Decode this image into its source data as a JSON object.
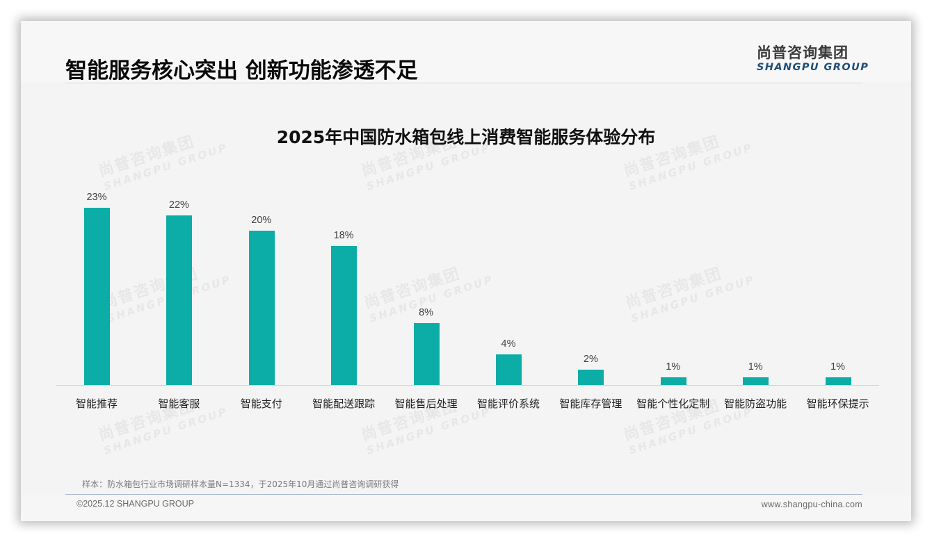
{
  "header": {
    "title": "智能服务核心突出 创新功能渗透不足",
    "logo_cn": "尚普咨询集团",
    "logo_en": "SHANGPU GROUP"
  },
  "watermark": {
    "cn": "尚普咨询集团",
    "en": "SHANGPU GROUP"
  },
  "colors": {
    "bar": "#0bada6",
    "logo_en": "#1f4e79",
    "title": "#0a0a0a"
  },
  "chart_data": {
    "type": "bar",
    "title": "2025年中国防水箱包线上消费智能服务体验分布",
    "xlabel": "",
    "ylabel": "",
    "ylim": [
      0,
      25
    ],
    "grid": false,
    "legend": null,
    "categories": [
      "智能推荐",
      "智能客服",
      "智能支付",
      "智能配送跟踪",
      "智能售后处理",
      "智能评价系统",
      "智能库存管理",
      "智能个性化定制",
      "智能防盗功能",
      "智能环保提示"
    ],
    "values": [
      23,
      22,
      20,
      18,
      8,
      4,
      2,
      1,
      1,
      1
    ],
    "labels": [
      "23%",
      "22%",
      "20%",
      "18%",
      "8%",
      "4%",
      "2%",
      "1%",
      "1%",
      "1%"
    ],
    "unit": "%"
  },
  "footer": {
    "note": "样本：防水箱包行业市场调研样本量N=1334，于2025年10月通过尚普咨询调研获得",
    "copyright": "©2025.12 SHANGPU GROUP",
    "website": "www.shangpu-china.com"
  }
}
